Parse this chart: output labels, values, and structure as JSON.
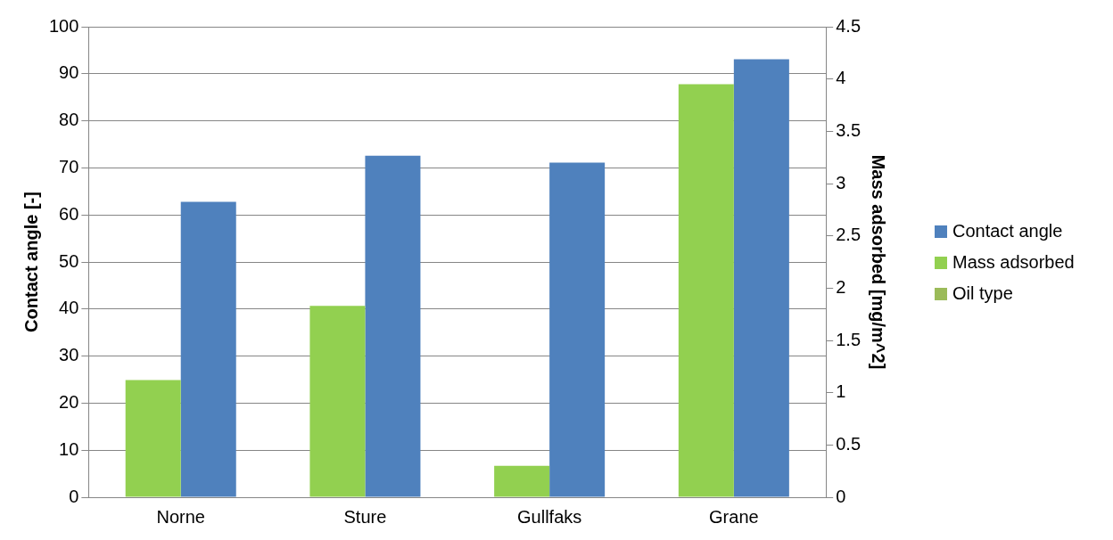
{
  "chart_data": {
    "type": "bar",
    "categories": [
      "Norne",
      "Sture",
      "Gullfaks",
      "Grane"
    ],
    "ylabel": "Contact angle [-]",
    "y2label": "Mass adsorbed [mg/m^2]",
    "series": [
      {
        "name": "Contact angle",
        "color": "#4f81bd",
        "values": [
          62.8,
          72.6,
          71.1,
          93.1
        ]
      },
      {
        "name": "Mass adsorbed",
        "color": "#92d050",
        "axis": "y2",
        "values": [
          1.12,
          1.83,
          0.3,
          3.95
        ]
      },
      {
        "name": "Oil type",
        "color": "#9bbb59",
        "values": [
          null,
          null,
          null,
          null
        ]
      }
    ],
    "ylim": [
      0,
      100
    ],
    "yticks": [
      0,
      10,
      20,
      30,
      40,
      50,
      60,
      70,
      80,
      90,
      100
    ],
    "y2lim": [
      0,
      4.5
    ],
    "y2ticks": [
      0,
      0.5,
      1,
      1.5,
      2,
      2.5,
      3,
      3.5,
      4,
      4.5
    ],
    "grid": "y",
    "legend": "right"
  }
}
